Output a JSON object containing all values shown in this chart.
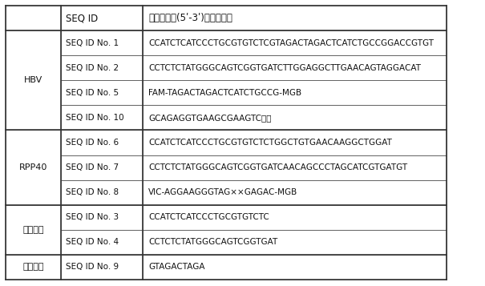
{
  "col2_header": "SEQ ID",
  "col3_header": "核苷酸序列(5ʹ-3ʹ)与修饰特征",
  "rows": [
    {
      "group": "",
      "seq_id": "SEQ ID No. 1",
      "sequence": "CCATCTCATCCCTGCGTGTCTCGTAGACTAGACTCATCTGCCGGACCGTGT"
    },
    {
      "group": "HBV",
      "seq_id": "SEQ ID No. 2",
      "sequence": "CCTCTCTATGGGCAGTCGGTGATCTTGGAGGCTTGAACAGTAGGACAT"
    },
    {
      "group": "",
      "seq_id": "SEQ ID No. 5",
      "sequence": "FAM-TAGACTAGACTCATCTGCCG-MGB"
    },
    {
      "group": "",
      "seq_id": "SEQ ID No. 10",
      "sequence": "GCAGAGGTGAAGCGAAGTC，，"
    },
    {
      "group": "",
      "seq_id": "SEQ ID No. 6",
      "sequence": "CCATCTCATCCCTGCGTGTCTCTGGCTGTGAACAAGGCTGGAT"
    },
    {
      "group": "RPP40",
      "seq_id": "SEQ ID No. 7",
      "sequence": "CCTCTCTATGGGCAGTCGGTGATCAACAGCCCTAGCATCGTGATGT"
    },
    {
      "group": "",
      "seq_id": "SEQ ID No. 8",
      "sequence": "VIC-AGGAAGGGTAG××GAGAC-MGB"
    },
    {
      "group": "公用引物",
      "seq_id": "SEQ ID No. 3",
      "sequence": "CCATCTCATCCCTGCGTGTCTC"
    },
    {
      "group": "",
      "seq_id": "SEQ ID No. 4",
      "sequence": "CCTCTCTATGGGCAGTCGGTGAT"
    },
    {
      "group": "随机序列",
      "seq_id": "SEQ ID No. 9",
      "sequence": "GTAGACTAGA"
    }
  ],
  "group_merges": [
    {
      "label": "HBV",
      "start": 0,
      "end": 3
    },
    {
      "label": "RPP40",
      "start": 4,
      "end": 6
    },
    {
      "label": "公用引物",
      "start": 7,
      "end": 8
    },
    {
      "label": "随机序列",
      "start": 9,
      "end": 9
    }
  ],
  "border_color": "#555555",
  "thick_border_color": "#333333",
  "text_color": "#111111",
  "bg_color": "#ffffff",
  "font_size_header": 8.5,
  "font_size_body": 7.5,
  "font_size_group": 8.0
}
